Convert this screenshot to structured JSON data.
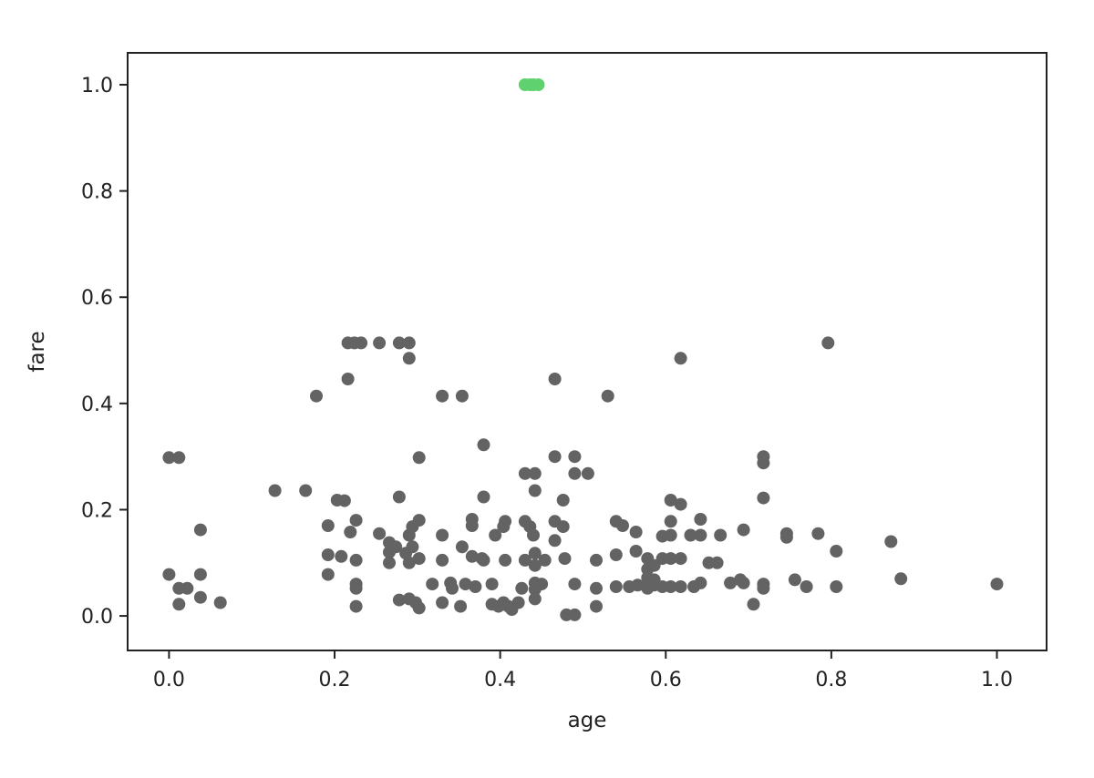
{
  "chart_data": {
    "type": "scatter",
    "title": "",
    "xlabel": "age",
    "ylabel": "fare",
    "xlim": [
      -0.05,
      1.06
    ],
    "ylim": [
      -0.065,
      1.06
    ],
    "xticks": [
      0.0,
      0.2,
      0.4,
      0.6,
      0.8,
      1.0
    ],
    "yticks": [
      0.0,
      0.2,
      0.4,
      0.6,
      0.8,
      1.0
    ],
    "xtick_labels": [
      "0.0",
      "0.2",
      "0.4",
      "0.6",
      "0.8",
      "1.0"
    ],
    "ytick_labels": [
      "0.0",
      "0.2",
      "0.4",
      "0.6",
      "0.8",
      "1.0"
    ],
    "grid": false,
    "series": [
      {
        "color": "#636363",
        "points": [
          [
            0.0,
            0.298
          ],
          [
            0.012,
            0.298
          ],
          [
            0.0,
            0.078
          ],
          [
            0.012,
            0.052
          ],
          [
            0.012,
            0.022
          ],
          [
            0.022,
            0.052
          ],
          [
            0.038,
            0.162
          ],
          [
            0.038,
            0.078
          ],
          [
            0.038,
            0.035
          ],
          [
            0.062,
            0.025
          ],
          [
            0.128,
            0.236
          ],
          [
            0.165,
            0.236
          ],
          [
            0.178,
            0.414
          ],
          [
            0.192,
            0.17
          ],
          [
            0.192,
            0.115
          ],
          [
            0.192,
            0.078
          ],
          [
            0.203,
            0.218
          ],
          [
            0.208,
            0.112
          ],
          [
            0.212,
            0.217
          ],
          [
            0.216,
            0.446
          ],
          [
            0.216,
            0.514
          ],
          [
            0.219,
            0.158
          ],
          [
            0.224,
            0.514
          ],
          [
            0.226,
            0.18
          ],
          [
            0.226,
            0.105
          ],
          [
            0.226,
            0.06
          ],
          [
            0.226,
            0.052
          ],
          [
            0.226,
            0.018
          ],
          [
            0.232,
            0.514
          ],
          [
            0.254,
            0.514
          ],
          [
            0.254,
            0.155
          ],
          [
            0.266,
            0.138
          ],
          [
            0.266,
            0.12
          ],
          [
            0.266,
            0.1
          ],
          [
            0.274,
            0.13
          ],
          [
            0.278,
            0.224
          ],
          [
            0.278,
            0.514
          ],
          [
            0.278,
            0.03
          ],
          [
            0.286,
            0.118
          ],
          [
            0.29,
            0.152
          ],
          [
            0.29,
            0.1
          ],
          [
            0.29,
            0.485
          ],
          [
            0.29,
            0.514
          ],
          [
            0.29,
            0.032
          ],
          [
            0.294,
            0.168
          ],
          [
            0.294,
            0.13
          ],
          [
            0.298,
            0.025
          ],
          [
            0.302,
            0.298
          ],
          [
            0.302,
            0.18
          ],
          [
            0.302,
            0.108
          ],
          [
            0.302,
            0.015
          ],
          [
            0.318,
            0.06
          ],
          [
            0.33,
            0.414
          ],
          [
            0.33,
            0.152
          ],
          [
            0.33,
            0.105
          ],
          [
            0.33,
            0.025
          ],
          [
            0.34,
            0.062
          ],
          [
            0.342,
            0.052
          ],
          [
            0.352,
            0.018
          ],
          [
            0.354,
            0.414
          ],
          [
            0.354,
            0.13
          ],
          [
            0.358,
            0.06
          ],
          [
            0.366,
            0.182
          ],
          [
            0.366,
            0.17
          ],
          [
            0.366,
            0.112
          ],
          [
            0.37,
            0.055
          ],
          [
            0.378,
            0.108
          ],
          [
            0.38,
            0.322
          ],
          [
            0.38,
            0.224
          ],
          [
            0.38,
            0.105
          ],
          [
            0.39,
            0.06
          ],
          [
            0.39,
            0.022
          ],
          [
            0.394,
            0.152
          ],
          [
            0.398,
            0.018
          ],
          [
            0.404,
            0.168
          ],
          [
            0.404,
            0.025
          ],
          [
            0.406,
            0.105
          ],
          [
            0.406,
            0.178
          ],
          [
            0.41,
            0.018
          ],
          [
            0.414,
            0.012
          ],
          [
            0.422,
            0.025
          ],
          [
            0.426,
            0.052
          ],
          [
            0.43,
            0.268
          ],
          [
            0.43,
            0.178
          ],
          [
            0.43,
            0.105
          ],
          [
            0.436,
            0.168
          ],
          [
            0.44,
            0.152
          ],
          [
            0.442,
            0.268
          ],
          [
            0.442,
            0.236
          ],
          [
            0.442,
            0.118
          ],
          [
            0.442,
            0.095
          ],
          [
            0.442,
            0.062
          ],
          [
            0.442,
            0.05
          ],
          [
            0.442,
            0.032
          ],
          [
            0.45,
            0.06
          ],
          [
            0.454,
            0.105
          ],
          [
            0.466,
            0.446
          ],
          [
            0.466,
            0.3
          ],
          [
            0.466,
            0.178
          ],
          [
            0.466,
            0.142
          ],
          [
            0.476,
            0.218
          ],
          [
            0.476,
            0.168
          ],
          [
            0.478,
            0.108
          ],
          [
            0.48,
            0.002
          ],
          [
            0.49,
            0.002
          ],
          [
            0.49,
            0.3
          ],
          [
            0.49,
            0.268
          ],
          [
            0.49,
            0.06
          ],
          [
            0.506,
            0.268
          ],
          [
            0.516,
            0.105
          ],
          [
            0.516,
            0.052
          ],
          [
            0.516,
            0.018
          ],
          [
            0.53,
            0.414
          ],
          [
            0.54,
            0.178
          ],
          [
            0.54,
            0.115
          ],
          [
            0.54,
            0.055
          ],
          [
            0.548,
            0.17
          ],
          [
            0.556,
            0.055
          ],
          [
            0.564,
            0.158
          ],
          [
            0.564,
            0.122
          ],
          [
            0.566,
            0.058
          ],
          [
            0.578,
            0.108
          ],
          [
            0.578,
            0.088
          ],
          [
            0.578,
            0.072
          ],
          [
            0.578,
            0.058
          ],
          [
            0.578,
            0.052
          ],
          [
            0.586,
            0.095
          ],
          [
            0.586,
            0.068
          ],
          [
            0.586,
            0.058
          ],
          [
            0.596,
            0.15
          ],
          [
            0.596,
            0.108
          ],
          [
            0.596,
            0.055
          ],
          [
            0.606,
            0.218
          ],
          [
            0.606,
            0.178
          ],
          [
            0.606,
            0.152
          ],
          [
            0.606,
            0.108
          ],
          [
            0.606,
            0.055
          ],
          [
            0.618,
            0.485
          ],
          [
            0.618,
            0.21
          ],
          [
            0.618,
            0.108
          ],
          [
            0.618,
            0.055
          ],
          [
            0.63,
            0.152
          ],
          [
            0.634,
            0.055
          ],
          [
            0.642,
            0.182
          ],
          [
            0.642,
            0.152
          ],
          [
            0.642,
            0.062
          ],
          [
            0.652,
            0.1
          ],
          [
            0.662,
            0.1
          ],
          [
            0.666,
            0.152
          ],
          [
            0.678,
            0.062
          ],
          [
            0.69,
            0.068
          ],
          [
            0.694,
            0.162
          ],
          [
            0.694,
            0.062
          ],
          [
            0.706,
            0.022
          ],
          [
            0.718,
            0.3
          ],
          [
            0.718,
            0.288
          ],
          [
            0.718,
            0.222
          ],
          [
            0.718,
            0.06
          ],
          [
            0.718,
            0.052
          ],
          [
            0.746,
            0.155
          ],
          [
            0.746,
            0.148
          ],
          [
            0.756,
            0.068
          ],
          [
            0.77,
            0.055
          ],
          [
            0.784,
            0.155
          ],
          [
            0.796,
            0.514
          ],
          [
            0.806,
            0.122
          ],
          [
            0.806,
            0.055
          ],
          [
            0.872,
            0.14
          ],
          [
            0.884,
            0.07
          ],
          [
            1.0,
            0.06
          ]
        ]
      },
      {
        "color": "#5fd16f",
        "points": [
          [
            0.43,
            1.0
          ],
          [
            0.436,
            1.0
          ],
          [
            0.44,
            1.0
          ],
          [
            0.446,
            1.0
          ]
        ]
      }
    ]
  }
}
